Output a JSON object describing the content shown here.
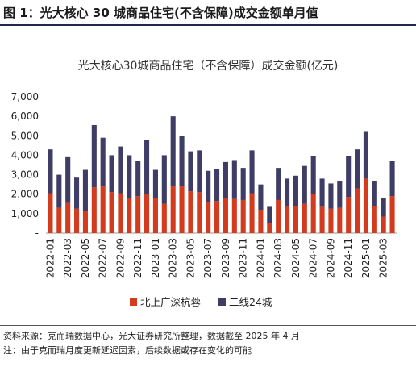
{
  "figure": {
    "label": "图 1：光大核心 30 城商品住宅(不含保障)成交金额单月值",
    "source": "资料来源：克而瑞数据中心，光大证券研究所整理，数据截至 2025 年 4 月",
    "note": "注：由于克而瑞月度更新延迟因素，后续数据或存在变化的可能"
  },
  "colors": {
    "series1": "#d23b1e",
    "series2": "#3f3d66",
    "axis": "#999999",
    "text": "#222222"
  },
  "chart_data": {
    "type": "bar",
    "stacked": true,
    "title": "光大核心30城商品住宅（不含保障）成交金额(亿元)",
    "xlabel": "",
    "ylabel": "",
    "ylim": [
      0,
      7000
    ],
    "yticks": [
      "-",
      "1,000",
      "2,000",
      "3,000",
      "4,000",
      "5,000",
      "6,000",
      "7,000"
    ],
    "grid": false,
    "legend_position": "bottom",
    "categories": [
      "2022-01",
      "2022-02",
      "2022-03",
      "2022-04",
      "2022-05",
      "2022-06",
      "2022-07",
      "2022-08",
      "2022-09",
      "2022-10",
      "2022-11",
      "2022-12",
      "2023-01",
      "2023-02",
      "2023-03",
      "2023-04",
      "2023-05",
      "2023-06",
      "2023-07",
      "2023-08",
      "2023-09",
      "2023-10",
      "2023-11",
      "2023-12",
      "2024-01",
      "2024-02",
      "2024-03",
      "2024-04",
      "2024-05",
      "2024-06",
      "2024-07",
      "2024-08",
      "2024-09",
      "2024-10",
      "2024-11",
      "2024-12",
      "2025-01",
      "2025-02",
      "2025-03",
      "2025-04"
    ],
    "tick_labels": [
      "2022-01",
      "2022-03",
      "2022-05",
      "2022-07",
      "2022-09",
      "2022-11",
      "2023-01",
      "2023-03",
      "2023-05",
      "2023-07",
      "2023-09",
      "2023-11",
      "2024-01",
      "2024-03",
      "2024-05",
      "2024-07",
      "2024-09",
      "2024-11",
      "2025-01",
      "2025-03"
    ],
    "series": [
      {
        "name": "北上广深杭蓉",
        "values": [
          2050,
          1300,
          1550,
          1250,
          1150,
          2350,
          2400,
          2100,
          2050,
          1800,
          1900,
          2000,
          1800,
          1500,
          2400,
          2400,
          2150,
          2100,
          1600,
          1650,
          1800,
          1750,
          1700,
          2050,
          1200,
          500,
          1700,
          1350,
          1400,
          1500,
          2000,
          1350,
          1250,
          1300,
          1850,
          2300,
          2800,
          1400,
          850,
          1900
        ]
      },
      {
        "name": "二线24城",
        "values": [
          2250,
          1700,
          2350,
          1600,
          2100,
          3200,
          2500,
          1900,
          2400,
          2200,
          1800,
          2800,
          1450,
          2500,
          3600,
          2600,
          2050,
          2150,
          1600,
          1650,
          1850,
          2000,
          1650,
          2200,
          1300,
          850,
          1650,
          1450,
          1550,
          1950,
          1950,
          1450,
          1300,
          1350,
          2100,
          2000,
          2400,
          1250,
          950,
          1800
        ]
      }
    ]
  },
  "legend": {
    "series1": "北上广深杭蓉",
    "series2": "二线24城"
  }
}
